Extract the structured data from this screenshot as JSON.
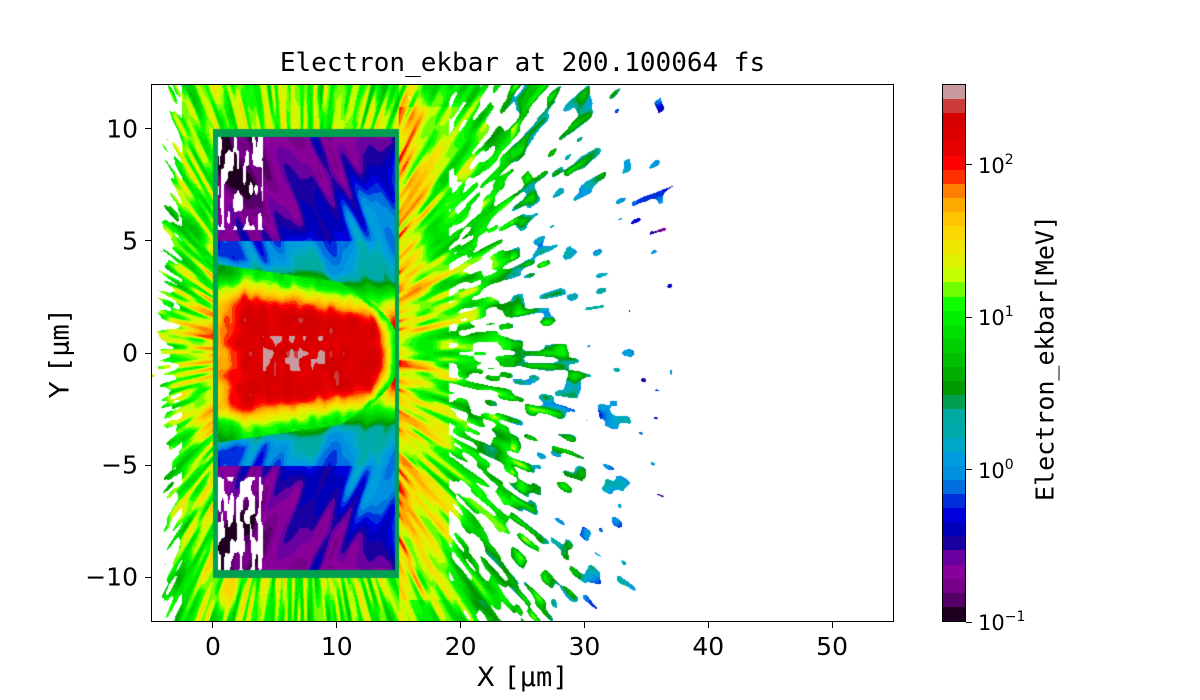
{
  "chart_data": {
    "type": "heatmap",
    "title": "Electron_ekbar at 200.100064 fs",
    "xlabel": "X",
    "xlabel_unit": "[μm]",
    "ylabel": "Y",
    "ylabel_unit": "[μm]",
    "xlim": [
      -5,
      55
    ],
    "ylim": [
      -12,
      12
    ],
    "xticks": [
      0,
      10,
      20,
      30,
      40,
      50
    ],
    "yticks": [
      -10,
      -5,
      0,
      5,
      10
    ],
    "ytick_labels": [
      "−10",
      "−5",
      "0",
      "5",
      "10"
    ],
    "target_box": {
      "x": [
        0,
        15
      ],
      "y": [
        -10,
        10
      ]
    },
    "colorbar": {
      "label": "Electron_ekbar[MeV]",
      "scale": "log",
      "range": [
        0.1,
        340
      ],
      "ticks": [
        {
          "base": "10",
          "exp": "−1",
          "log": -1
        },
        {
          "base": "10",
          "exp": "0",
          "log": 0
        },
        {
          "base": "10",
          "exp": "1",
          "log": 1
        },
        {
          "base": "10",
          "exp": "2",
          "log": 2
        }
      ],
      "colormap": "nipy_spectral",
      "band_colors": [
        "#200020",
        "#550066",
        "#770088",
        "#880099",
        "#6a00a0",
        "#1a00a0",
        "#0000bb",
        "#0000dd",
        "#0030dd",
        "#0070e0",
        "#0090e0",
        "#009ce0",
        "#00a8c8",
        "#00aaaa",
        "#00aaa0",
        "#00a050",
        "#009a00",
        "#00ae00",
        "#00c000",
        "#00d000",
        "#00e000",
        "#00f000",
        "#10ff00",
        "#6fff00",
        "#c4ff00",
        "#dff000",
        "#eee800",
        "#f8d800",
        "#ffc400",
        "#ffaa00",
        "#ff8000",
        "#ff3000",
        "#ff0000",
        "#e60000",
        "#dd0000",
        "#d40000",
        "#cc3c3c",
        "#c89a9e"
      ]
    }
  }
}
